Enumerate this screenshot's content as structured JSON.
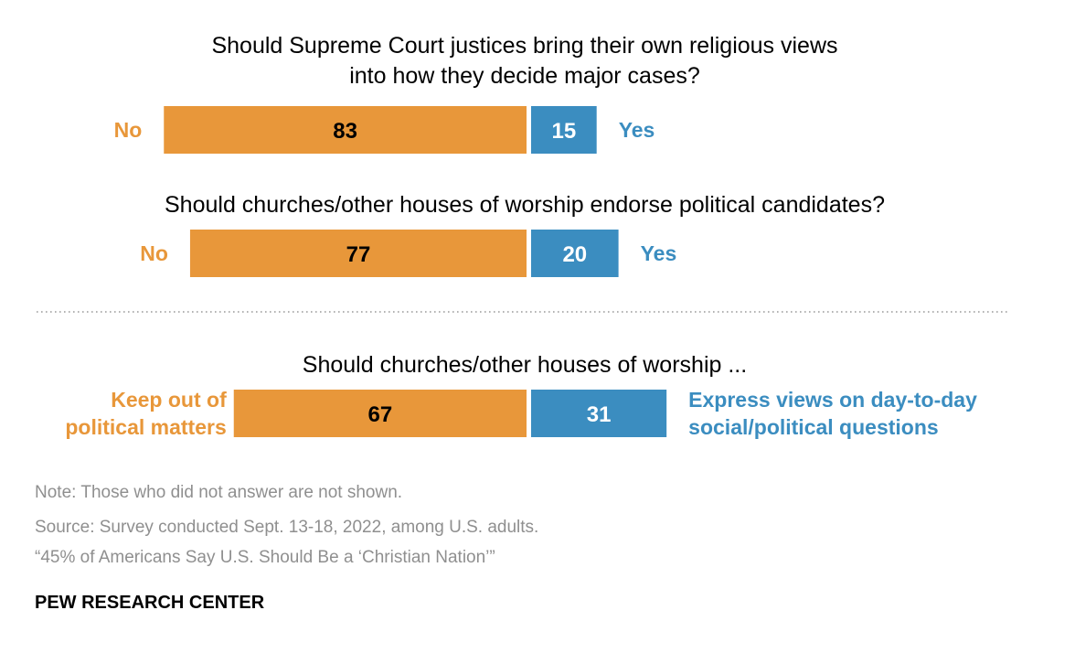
{
  "colors": {
    "no": "#e8973a",
    "yes": "#3b8dc0",
    "no_label": "#e8973a",
    "yes_label": "#3b8dc0",
    "value_on_no": "#000000",
    "value_on_yes": "#ffffff",
    "divider": "#9a9a9a"
  },
  "chart_data": {
    "type": "bar",
    "orientation": "horizontal-diverging",
    "questions": [
      {
        "title": [
          "Should Supreme Court justices bring their own religious views",
          "into how they decide major cases?"
        ],
        "left": {
          "label": [
            "No"
          ],
          "value": 83
        },
        "right": {
          "label": [
            "Yes"
          ],
          "value": 15
        }
      },
      {
        "title": [
          "Should churches/other houses of worship endorse political candidates?"
        ],
        "left": {
          "label": [
            "No"
          ],
          "value": 77
        },
        "right": {
          "label": [
            "Yes"
          ],
          "value": 20
        }
      },
      {
        "title": [
          "Should churches/other houses of worship ..."
        ],
        "left": {
          "label": [
            "Keep out of",
            "political matters"
          ],
          "value": 67
        },
        "right": {
          "label": [
            "Express views on day-to-day",
            "social/political questions"
          ],
          "value": 31
        }
      }
    ],
    "divider": "dotted line between second and third question"
  },
  "footer": {
    "note": "Note: Those who did not answer are not shown.",
    "source": "Source: Survey conducted Sept. 13-18, 2022, among U.S. adults.",
    "report": "“45% of Americans Say U.S. Should Be a ‘Christian Nation’”",
    "brand": "PEW RESEARCH CENTER"
  }
}
